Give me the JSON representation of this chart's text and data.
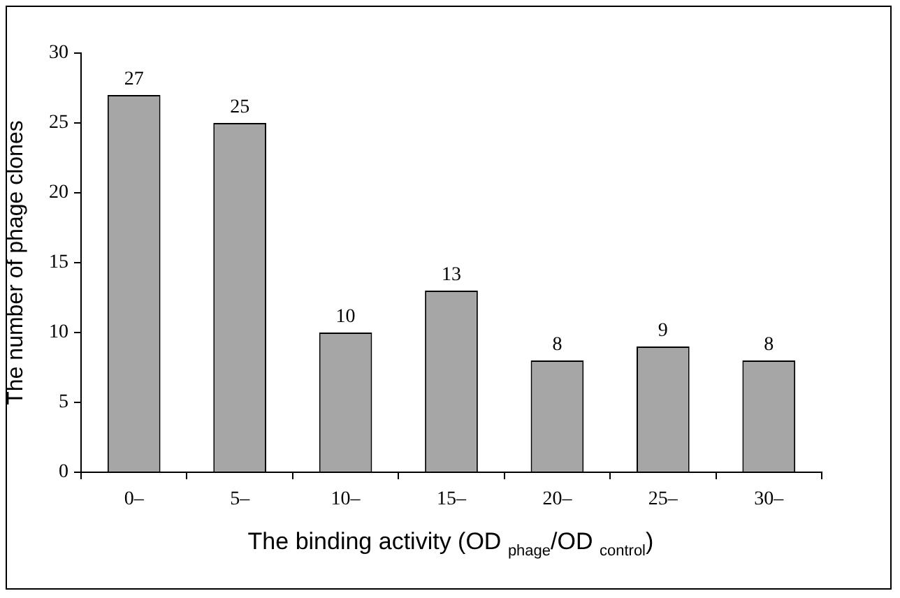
{
  "chart_data": {
    "type": "bar",
    "xlabel": "The binding activity (OD $_{phage}$/OD $_{control}$)",
    "ylabel": "The number of phage clones",
    "categories": [
      "0–",
      "5–",
      "10–",
      "15–",
      "20–",
      "25–",
      "30–"
    ],
    "values": [
      27,
      25,
      10,
      13,
      8,
      9,
      8
    ],
    "color": "#a6a6a6",
    "ylim": [
      0,
      30
    ],
    "yticks": [
      0,
      5,
      10,
      15,
      20,
      25,
      30
    ],
    "data_labels": true
  }
}
